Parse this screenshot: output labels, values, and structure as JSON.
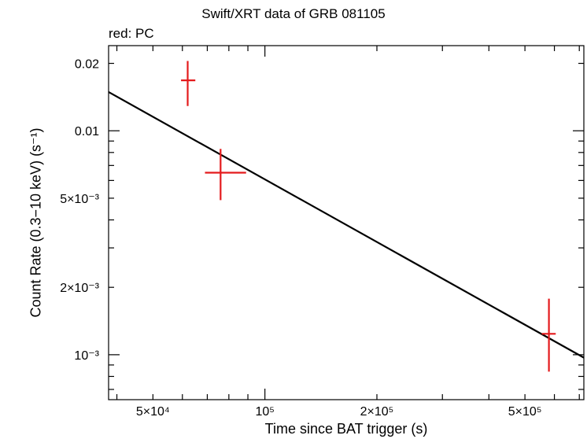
{
  "chart_data": {
    "type": "scatter",
    "title": "Swift/XRT data of GRB 081105",
    "annotation": "red: PC",
    "xlabel": "Time since BAT trigger (s)",
    "ylabel": "Count Rate (0.3−10 keV) (s⁻¹)",
    "xscale": "log",
    "yscale": "log",
    "xlim": [
      38000,
      720000
    ],
    "ylim": [
      0.00063,
      0.024
    ],
    "grid": false,
    "x_ticks": [
      {
        "value": 50000,
        "label": "5×10⁴"
      },
      {
        "value": 100000,
        "label": "10⁵"
      },
      {
        "value": 200000,
        "label": "2×10⁵"
      },
      {
        "value": 500000,
        "label": "5×10⁵"
      }
    ],
    "y_ticks": [
      {
        "value": 0.001,
        "label": "10⁻³"
      },
      {
        "value": 0.002,
        "label": "2×10⁻³"
      },
      {
        "value": 0.005,
        "label": "5×10⁻³"
      },
      {
        "value": 0.01,
        "label": "0.01"
      },
      {
        "value": 0.02,
        "label": "0.02"
      }
    ],
    "series": [
      {
        "color": "#e41a1c",
        "points": [
          {
            "x": 62000,
            "y": 0.0168,
            "xerr": [
              59500,
              65000
            ],
            "yerr": [
              0.0129,
              0.0205
            ]
          },
          {
            "x": 76000,
            "y": 0.0065,
            "xerr": [
              69000,
              89000
            ],
            "yerr": [
              0.0049,
              0.0083
            ]
          },
          {
            "x": 580000,
            "y": 0.00124,
            "xerr": [
              555000,
              605000
            ],
            "yerr": [
              0.00084,
              0.00178
            ]
          }
        ]
      }
    ],
    "fit_line": {
      "color": "#000000",
      "x": [
        38000,
        720000
      ],
      "y": [
        0.0149,
        0.00097
      ]
    }
  }
}
